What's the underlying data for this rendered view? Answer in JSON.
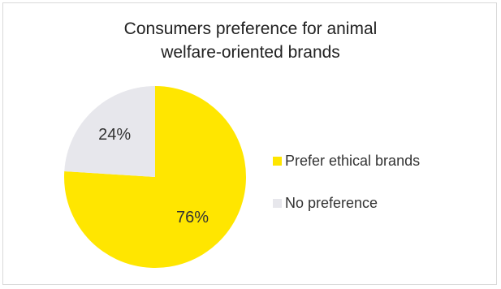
{
  "chart_data": {
    "type": "pie",
    "title_lines": [
      "Consumers preference for animal",
      "welfare-oriented brands"
    ],
    "slices": [
      {
        "label": "Prefer ethical brands",
        "value": 76,
        "display": "76%",
        "color": "#FFE600"
      },
      {
        "label": "No preference",
        "value": 24,
        "display": "24%",
        "color": "#E7E7EC"
      }
    ],
    "legend_position": "right"
  }
}
